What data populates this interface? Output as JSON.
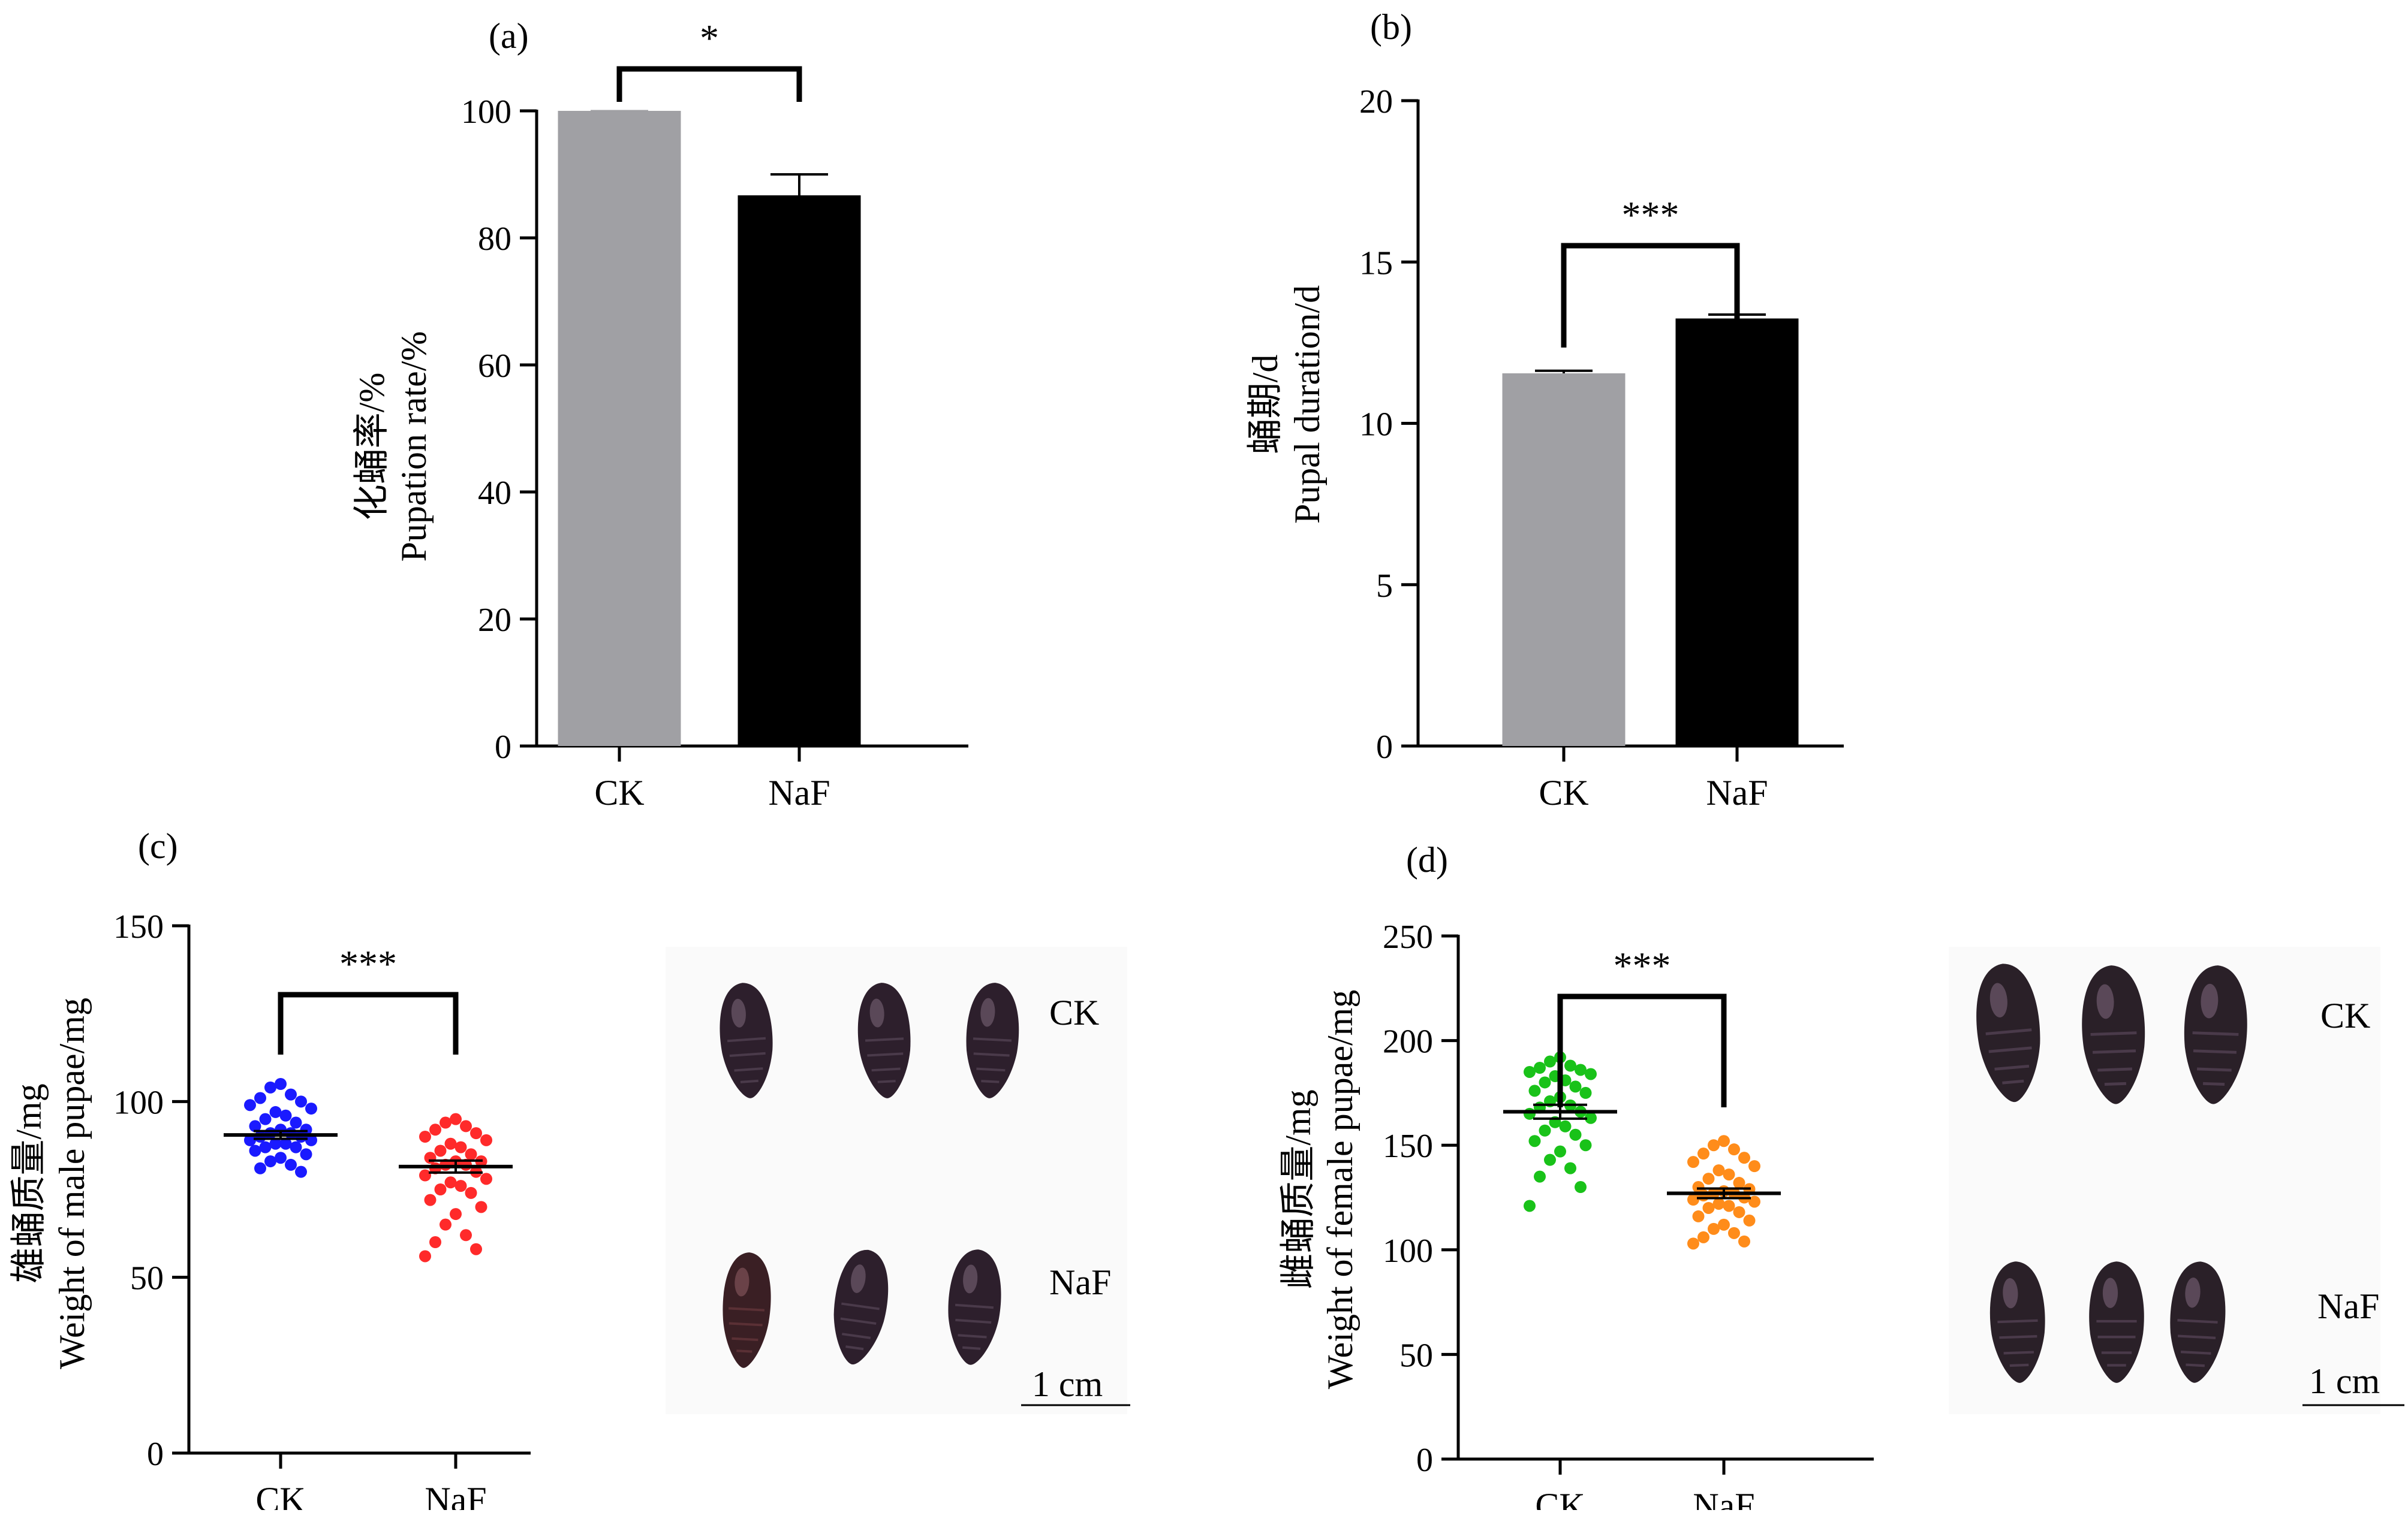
{
  "figure": {
    "panels": [
      {
        "letter": "(a)"
      },
      {
        "letter": "(b)"
      },
      {
        "letter": "(c)"
      },
      {
        "letter": "(d)"
      }
    ]
  },
  "chart_data": [
    {
      "type": "bar",
      "letter": "(a)",
      "categories": [
        "CK",
        "NaF"
      ],
      "values": [
        100,
        86.7
      ],
      "errors": [
        0,
        3.3
      ],
      "colors": [
        "#a0a0a4",
        "#000000"
      ],
      "ylabel_cn": "化蛹率/%",
      "ylabel_en": "Pupation rate/%",
      "ylim": [
        0,
        100
      ],
      "yticks": [
        0,
        20,
        40,
        60,
        80,
        100
      ],
      "significance": "*"
    },
    {
      "type": "bar",
      "letter": "(b)",
      "categories": [
        "CK",
        "NaF"
      ],
      "values": [
        11.55,
        13.25
      ],
      "errors": [
        0.08,
        0.12
      ],
      "colors": [
        "#a0a0a4",
        "#000000"
      ],
      "ylabel_cn": "蛹期/d",
      "ylabel_en": "Pupal duration/d",
      "ylim": [
        0,
        20
      ],
      "yticks": [
        0,
        5,
        10,
        15,
        20
      ],
      "significance": "***"
    },
    {
      "type": "scatter",
      "letter": "(c)",
      "categories": [
        "CK",
        "NaF"
      ],
      "means": [
        90.5,
        81.5
      ],
      "errors": [
        1.1,
        1.7
      ],
      "colors": [
        "#1a1aff",
        "#ff2a2a"
      ],
      "points": [
        [
          105,
          104,
          102,
          101,
          100,
          99,
          98,
          97,
          96,
          95,
          94,
          93,
          92,
          92,
          91,
          91,
          90,
          90,
          89,
          89,
          88,
          88,
          87,
          87,
          86,
          85,
          84,
          83,
          82,
          81,
          80
        ],
        [
          95,
          94,
          93,
          92,
          91,
          90,
          89,
          88,
          87,
          86,
          85,
          84,
          83,
          83,
          82,
          82,
          81,
          80,
          79,
          78,
          77,
          76,
          75,
          74,
          72,
          70,
          68,
          65,
          62,
          60,
          58,
          56
        ]
      ],
      "ylabel_cn": "雄蛹质量/mg",
      "ylabel_en": "Weight of male pupae/mg",
      "ylim": [
        0,
        150
      ],
      "yticks": [
        0,
        50,
        100,
        150
      ],
      "significance": "***"
    },
    {
      "type": "scatter",
      "letter": "(d)",
      "categories": [
        "CK",
        "NaF"
      ],
      "means": [
        166,
        127
      ],
      "errors": [
        3.3,
        2.3
      ],
      "colors": [
        "#19c219",
        "#ff8c1a"
      ],
      "points": [
        [
          192,
          190,
          188,
          187,
          186,
          185,
          184,
          183,
          181,
          180,
          178,
          176,
          175,
          173,
          171,
          169,
          168,
          166,
          165,
          163,
          161,
          159,
          157,
          155,
          152,
          150,
          147,
          143,
          139,
          135,
          130,
          121
        ],
        [
          152,
          150,
          148,
          146,
          144,
          142,
          140,
          138,
          136,
          134,
          132,
          130,
          129,
          128,
          127,
          127,
          126,
          125,
          124,
          123,
          122,
          121,
          120,
          118,
          116,
          114,
          112,
          110,
          108,
          106,
          104,
          103
        ]
      ],
      "ylabel_cn": "雌蛹质量/mg",
      "ylabel_en": "Weight of female pupae/mg",
      "ylim": [
        0,
        250
      ],
      "yticks": [
        0,
        50,
        100,
        150,
        200,
        250
      ],
      "significance": "***"
    }
  ],
  "photos": [
    {
      "top_label": "CK",
      "bottom_label": "NaF",
      "scale_label": "1 cm"
    },
    {
      "top_label": "CK",
      "bottom_label": "NaF",
      "scale_label": "1 cm"
    }
  ]
}
